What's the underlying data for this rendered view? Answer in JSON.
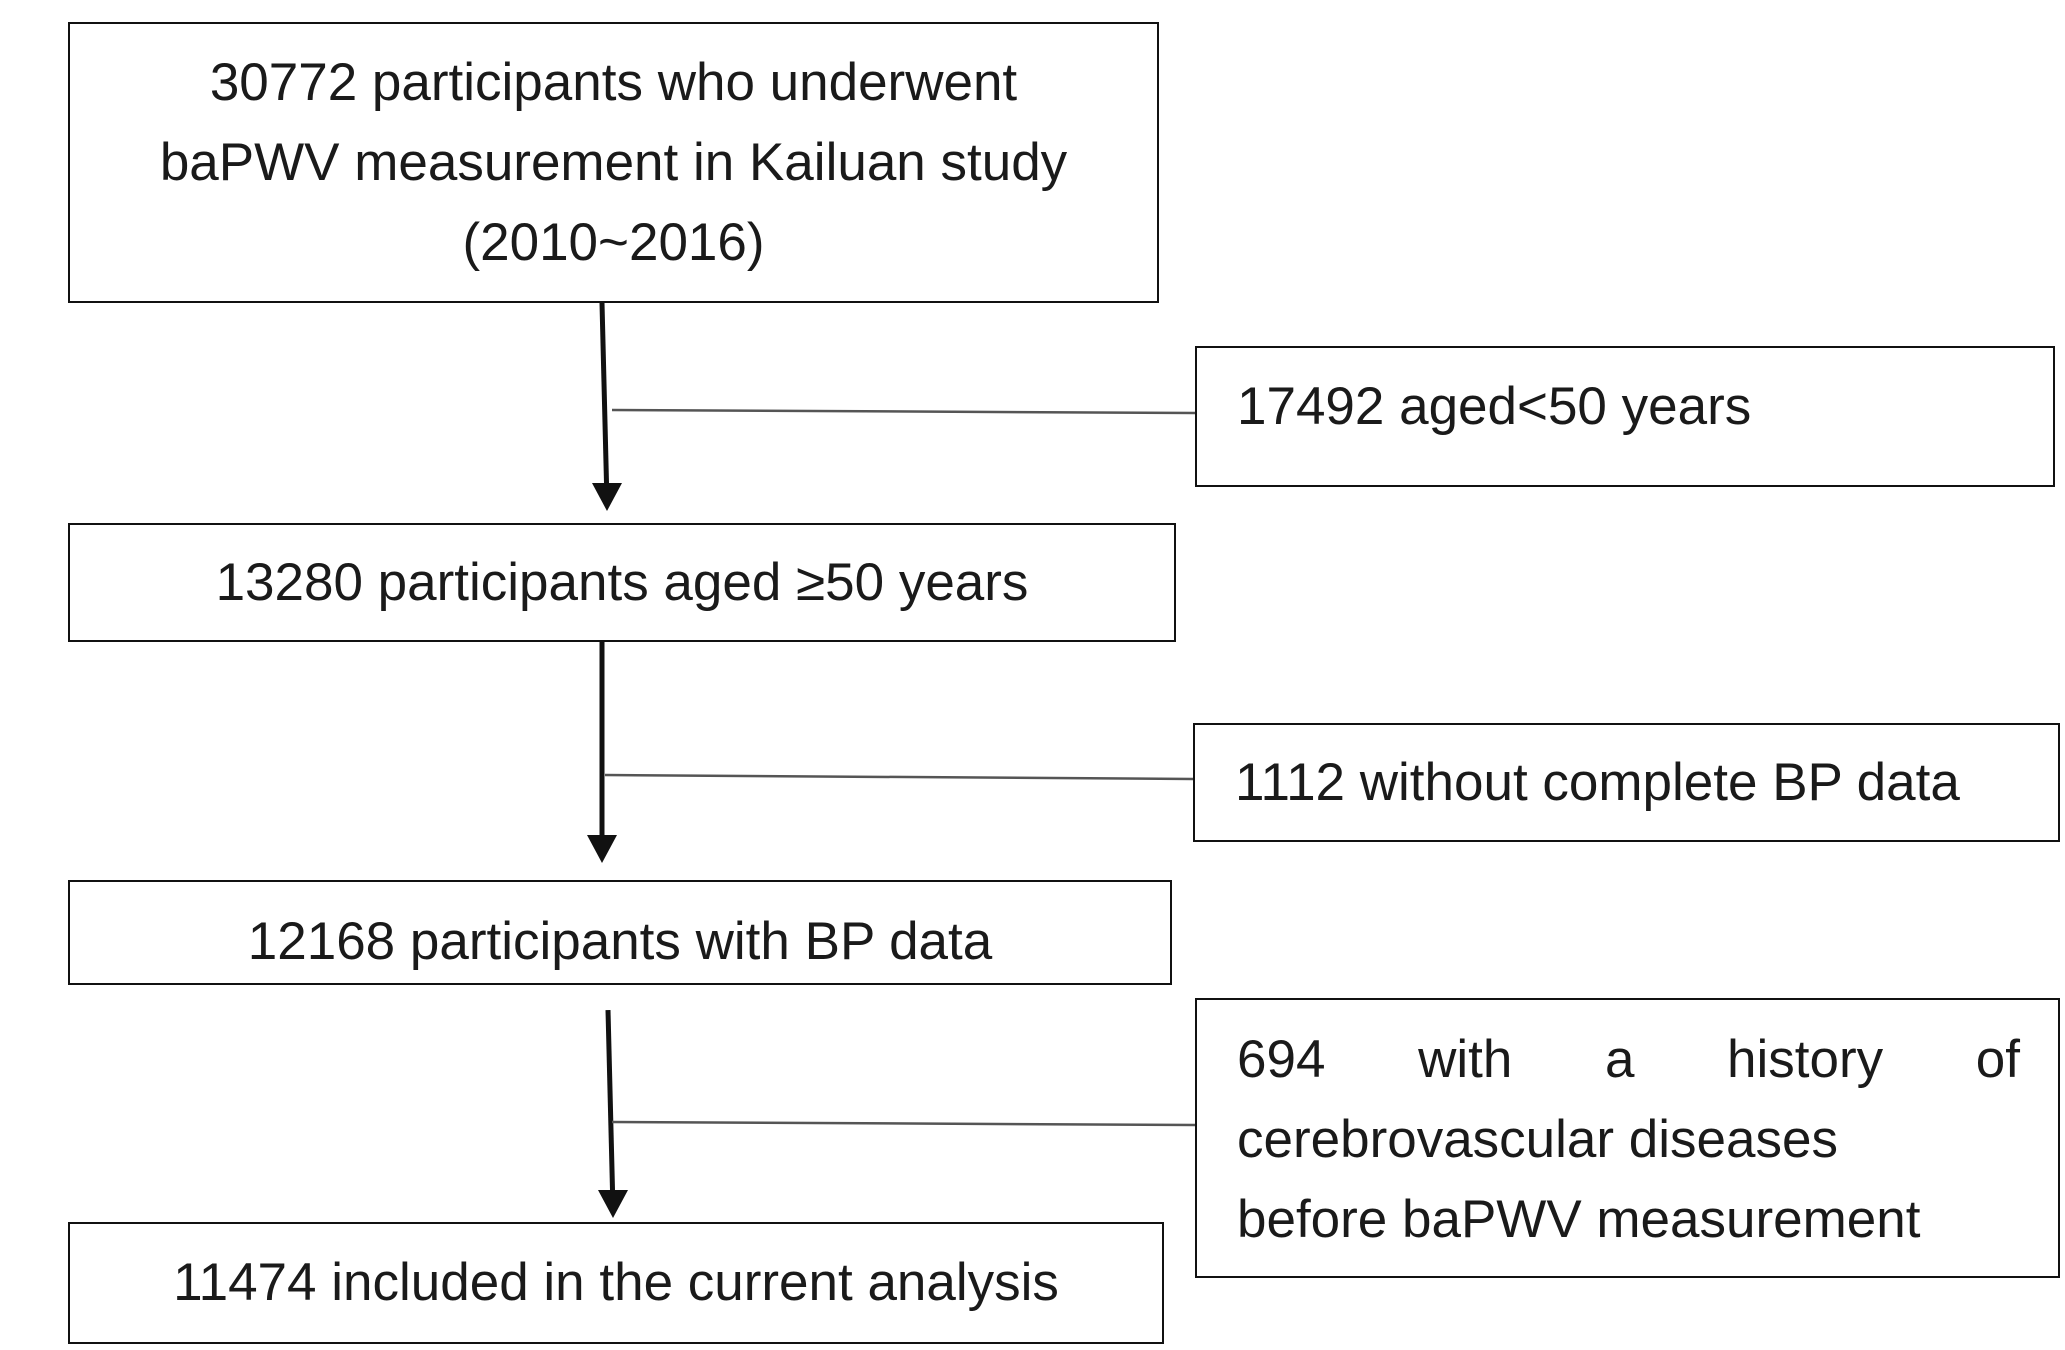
{
  "main_flow": [
    {
      "id": "step1",
      "lines": [
        "30772 participants who underwent",
        "baPWV measurement in Kailuan study",
        "(2010~2016)"
      ]
    },
    {
      "id": "step2",
      "lines": [
        "13280 participants aged ≥50 years"
      ]
    },
    {
      "id": "step3",
      "lines": [
        "12168 participants with BP data"
      ]
    },
    {
      "id": "step4",
      "lines": [
        "11474 included in the current analysis"
      ]
    }
  ],
  "exclusions": [
    {
      "id": "excl1",
      "lines": [
        "17492 aged<50 years"
      ]
    },
    {
      "id": "excl2",
      "lines": [
        "1112 without complete BP data"
      ]
    },
    {
      "id": "excl3",
      "lines": [
        "694 with a history of",
        "cerebrovascular diseases",
        "before baPWV measurement"
      ]
    }
  ]
}
